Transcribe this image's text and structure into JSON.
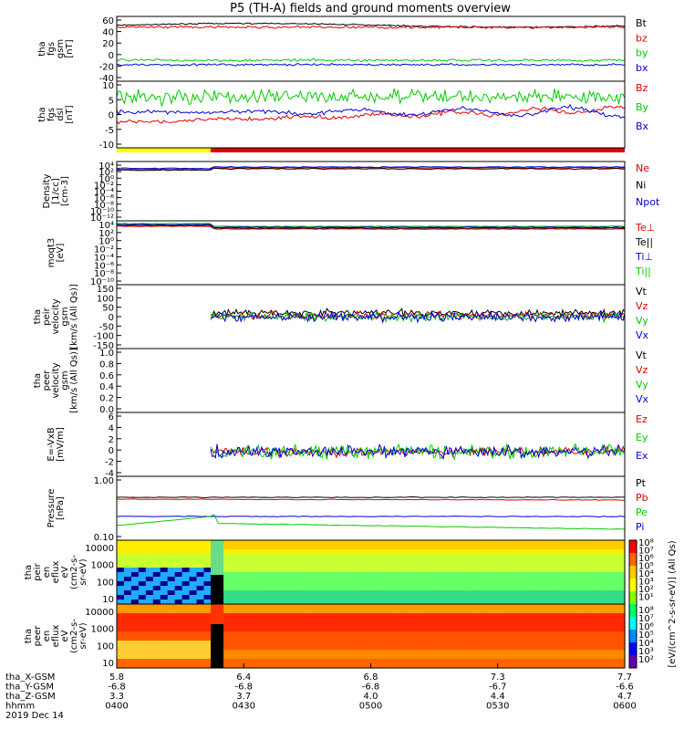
{
  "title": "P5 (TH-A) fields and ground moments overview",
  "date_label": "2019 Dec 14",
  "colors": {
    "black": "#000000",
    "red": "#e00000",
    "green": "#00cc00",
    "blue": "#0000dd",
    "yellow": "#ffff00"
  },
  "chart_data": [
    {
      "type": "line",
      "id": "fgs",
      "ylabel": [
        "tha",
        "fgs",
        "gsm",
        "[nT]"
      ],
      "yticks": [
        "60",
        "40",
        "20",
        "0",
        "-20",
        "-40"
      ],
      "ylim": [
        -40,
        62
      ],
      "series": [
        {
          "name": "Bt",
          "color": "black",
          "level": 48,
          "noise": 1.2
        },
        {
          "name": "bz",
          "color": "red",
          "level": 45,
          "noise": 1
        },
        {
          "name": "by",
          "color": "green",
          "level": -7,
          "noise": 1
        },
        {
          "name": "bx",
          "color": "blue",
          "level": -14,
          "noise": 0.8
        }
      ]
    },
    {
      "type": "line",
      "id": "fgs_dsl",
      "ylabel": [
        "tha",
        "fgs",
        "dsl",
        "[nT]"
      ],
      "yticks": [
        "10",
        "5",
        "0",
        "-5",
        "-10"
      ],
      "ylim": [
        -15,
        11
      ],
      "series": [
        {
          "name": "Bz",
          "color": "red",
          "level": -5,
          "noise": 1.6
        },
        {
          "name": "By",
          "color": "green",
          "level": 5,
          "noise": 1.4
        },
        {
          "name": "Bx",
          "color": "blue",
          "level": -1,
          "noise": 1.5
        }
      ]
    },
    {
      "type": "line",
      "id": "density",
      "ylabel": [
        "Density",
        "[1/cc]",
        "[cm-3]"
      ],
      "yticks": [
        "10⁴",
        "10²",
        "10⁰",
        "10⁻²",
        "10⁻⁴",
        "10⁻⁶",
        "10⁻⁸",
        "10⁻¹⁰",
        "10⁻¹²"
      ],
      "series": [
        {
          "name": "Ne",
          "color": "red"
        },
        {
          "name": "Ni",
          "color": "black"
        },
        {
          "name": "Npot",
          "color": "blue"
        }
      ]
    },
    {
      "type": "line",
      "id": "temp",
      "ylabel": [
        "moqt3",
        "[eV]"
      ],
      "yticks": [
        "10⁴",
        "10²",
        "10⁰",
        "10⁻²",
        "10⁻⁴",
        "10⁻⁶",
        "10⁻⁸",
        "10⁻¹⁰"
      ],
      "series": [
        {
          "name": "Te⊥",
          "color": "red"
        },
        {
          "name": "Te||",
          "color": "black"
        },
        {
          "name": "Ti⊥",
          "color": "blue"
        },
        {
          "name": "Ti||",
          "color": "green"
        }
      ]
    },
    {
      "type": "line",
      "id": "peir_vel",
      "ylabel": [
        "tha",
        "peir",
        "velocity",
        "gsm",
        "[km/s (All Qs)]"
      ],
      "yticks": [
        "150",
        "100",
        "50",
        "0",
        "-50",
        "-100",
        "-150"
      ],
      "ylim": [
        -150,
        150
      ],
      "series": [
        {
          "name": "Vt",
          "color": "black",
          "level": 18,
          "noise": 8
        },
        {
          "name": "Vz",
          "color": "red",
          "level": 5,
          "noise": 8
        },
        {
          "name": "Vy",
          "color": "green",
          "level": 0,
          "noise": 10
        },
        {
          "name": "Vx",
          "color": "blue",
          "level": -2,
          "noise": 10
        }
      ]
    },
    {
      "type": "line",
      "id": "peer_vel",
      "ylabel": [
        "tha",
        "peer",
        "velocity",
        "gsm",
        "[km/s (All Qs)]"
      ],
      "yticks": [
        "1.0",
        "0.8",
        "0.6",
        "0.4",
        "0.2",
        "0.0"
      ],
      "series": [
        {
          "name": "Vt",
          "color": "black"
        },
        {
          "name": "Vz",
          "color": "red"
        },
        {
          "name": "Vy",
          "color": "green"
        },
        {
          "name": "Vx",
          "color": "blue"
        }
      ]
    },
    {
      "type": "line",
      "id": "efield",
      "ylabel": [
        "E=-VxB",
        "[mV/m]"
      ],
      "yticks": [
        "6",
        "4",
        "2",
        "0",
        "-2",
        "-4"
      ],
      "ylim": [
        -4,
        6.4
      ],
      "series": [
        {
          "name": "Ez",
          "color": "red",
          "level": 0,
          "noise": 0.35
        },
        {
          "name": "Ey",
          "color": "green",
          "level": 0,
          "noise": 0.55
        },
        {
          "name": "Ex",
          "color": "blue",
          "level": 0,
          "noise": 0.45
        }
      ]
    },
    {
      "type": "line",
      "id": "pressure",
      "ylabel": [
        "Pressure",
        "[nPa]"
      ],
      "yticks": [
        "1.00",
        "0.10"
      ],
      "series": [
        {
          "name": "Pt",
          "color": "black"
        },
        {
          "name": "Pb",
          "color": "red"
        },
        {
          "name": "Pe",
          "color": "green"
        },
        {
          "name": "Pi",
          "color": "blue"
        }
      ]
    },
    {
      "type": "heatmap",
      "id": "peir_flux",
      "ylabel": [
        "tha",
        "peir",
        "en",
        "eflux",
        "eV",
        "(cm2-s-",
        "sr-eV)"
      ],
      "yticks": [
        "10000",
        "1000",
        "100",
        "10"
      ]
    },
    {
      "type": "heatmap",
      "id": "peer_flux",
      "ylabel": [
        "tha",
        "peer",
        "en",
        "eflux",
        "eV",
        "(cm2-s-",
        "sr-eV)"
      ],
      "yticks": [
        "10000",
        "1000",
        "100",
        "10"
      ]
    }
  ],
  "colorbar": {
    "label": "[eV/(cm^2-s-sr-eV)] (All Qs)",
    "ticks_top": [
      "10⁸",
      "10⁷",
      "10⁶",
      "10⁵",
      "10⁴",
      "10³",
      "10²",
      "10¹"
    ],
    "ticks_bottom": [
      "10⁸",
      "10⁷",
      "10⁶",
      "10⁵",
      "10⁴",
      "10³",
      "10²"
    ]
  },
  "xaxis": {
    "rows": [
      {
        "label": "tha_X-GSM",
        "values": [
          "5.8",
          "6.4",
          "6.8",
          "7.3",
          "7.7"
        ]
      },
      {
        "label": "tha_Y-GSM",
        "values": [
          "-6.8",
          "-6.8",
          "-6.8",
          "-6.7",
          "-6.6"
        ]
      },
      {
        "label": "tha_Z-GSM",
        "values": [
          "3.3",
          "3.7",
          "4.0",
          "4.4",
          "4.7"
        ]
      },
      {
        "label": "hhmm",
        "values": [
          "0400",
          "0430",
          "0500",
          "0530",
          "0600"
        ]
      }
    ]
  }
}
